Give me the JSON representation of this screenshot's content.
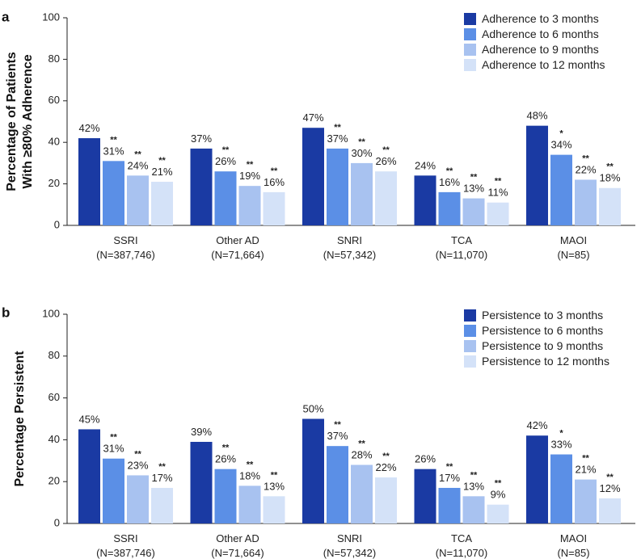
{
  "chart_data": [
    {
      "panel": "a",
      "type": "bar",
      "ylabel_line1": "Percentage of Patients",
      "ylabel_line2": "With ≥80% Adherence",
      "ylim": [
        0,
        100
      ],
      "yticks": [
        0,
        20,
        40,
        60,
        80,
        100
      ],
      "legend_position": "top-right",
      "categories": [
        {
          "name": "SSRI",
          "n": "(N=387,746)"
        },
        {
          "name": "Other AD",
          "n": "(N=71,664)"
        },
        {
          "name": "SNRI",
          "n": "(N=57,342)"
        },
        {
          "name": "TCA",
          "n": "(N=11,070)"
        },
        {
          "name": "MAOI",
          "n": "(N=85)"
        }
      ],
      "series": [
        {
          "name": "Adherence to 3 months",
          "color": "#1a3aa3",
          "values": [
            42,
            37,
            47,
            24,
            48
          ],
          "labels": [
            "42%",
            "37%",
            "47%",
            "24%",
            "48%"
          ],
          "sig": [
            "",
            "",
            "",
            "",
            ""
          ]
        },
        {
          "name": "Adherence to 6 months",
          "color": "#5b8fe6",
          "values": [
            31,
            26,
            37,
            16,
            34
          ],
          "labels": [
            "31%",
            "26%",
            "37%",
            "16%",
            "34%"
          ],
          "sig": [
            "**",
            "**",
            "**",
            "**",
            "*"
          ]
        },
        {
          "name": "Adherence to 9  months",
          "color": "#a8c2f0",
          "values": [
            24,
            19,
            30,
            13,
            22
          ],
          "labels": [
            "24%",
            "19%",
            "30%",
            "13%",
            "22%"
          ],
          "sig": [
            "**",
            "**",
            "**",
            "**",
            "**"
          ]
        },
        {
          "name": "Adherence to 12 months",
          "color": "#d4e2f8",
          "values": [
            21,
            16,
            26,
            11,
            18
          ],
          "labels": [
            "21%",
            "16%",
            "26%",
            "11%",
            "18%"
          ],
          "sig": [
            "**",
            "**",
            "**",
            "**",
            "**"
          ]
        }
      ]
    },
    {
      "panel": "b",
      "type": "bar",
      "ylabel_line1": "Percentage Persistent",
      "ylabel_line2": "",
      "ylim": [
        0,
        100
      ],
      "yticks": [
        0,
        20,
        40,
        60,
        80,
        100
      ],
      "legend_position": "top-right",
      "categories": [
        {
          "name": "SSRI",
          "n": "(N=387,746)"
        },
        {
          "name": "Other AD",
          "n": "(N=71,664)"
        },
        {
          "name": "SNRI",
          "n": "(N=57,342)"
        },
        {
          "name": "TCA",
          "n": "(N=11,070)"
        },
        {
          "name": "MAOI",
          "n": "(N=85)"
        }
      ],
      "series": [
        {
          "name": "Persistence to 3 months",
          "color": "#1a3aa3",
          "values": [
            45,
            39,
            50,
            26,
            42
          ],
          "labels": [
            "45%",
            "39%",
            "50%",
            "26%",
            "42%"
          ],
          "sig": [
            "",
            "",
            "",
            "",
            ""
          ]
        },
        {
          "name": "Persistence to 6 months",
          "color": "#5b8fe6",
          "values": [
            31,
            26,
            37,
            17,
            33
          ],
          "labels": [
            "31%",
            "26%",
            "37%",
            "17%",
            "33%"
          ],
          "sig": [
            "**",
            "**",
            "**",
            "**",
            "*"
          ]
        },
        {
          "name": "Persistence to 9 months",
          "color": "#a8c2f0",
          "values": [
            23,
            18,
            28,
            13,
            21
          ],
          "labels": [
            "23%",
            "18%",
            "28%",
            "13%",
            "21%"
          ],
          "sig": [
            "**",
            "**",
            "**",
            "**",
            "**"
          ]
        },
        {
          "name": "Persistence to 12 months",
          "color": "#d4e2f8",
          "values": [
            17,
            13,
            22,
            9,
            12
          ],
          "labels": [
            "17%",
            "13%",
            "22%",
            "9%",
            "12%"
          ],
          "sig": [
            "**",
            "**",
            "**",
            "**",
            "**"
          ]
        }
      ]
    }
  ]
}
